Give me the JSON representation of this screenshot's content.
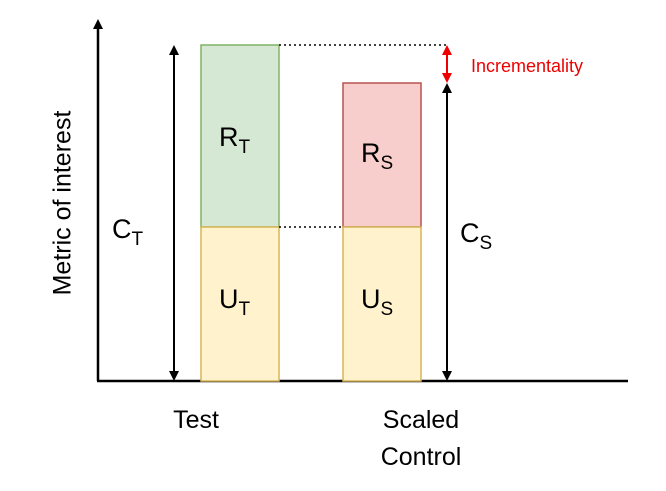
{
  "axis_label": "Metric of interest",
  "x_labels": {
    "test": "Test",
    "scaled_control": [
      "Scaled",
      "Control"
    ]
  },
  "symbols": {
    "c_t": {
      "main": "C",
      "sub": "T"
    },
    "r_t": {
      "main": "R",
      "sub": "T"
    },
    "u_t": {
      "main": "U",
      "sub": "T"
    },
    "r_s": {
      "main": "R",
      "sub": "S"
    },
    "u_s": {
      "main": "U",
      "sub": "S"
    },
    "c_s": {
      "main": "C",
      "sub": "S"
    }
  },
  "annotation": "Incrementality"
}
